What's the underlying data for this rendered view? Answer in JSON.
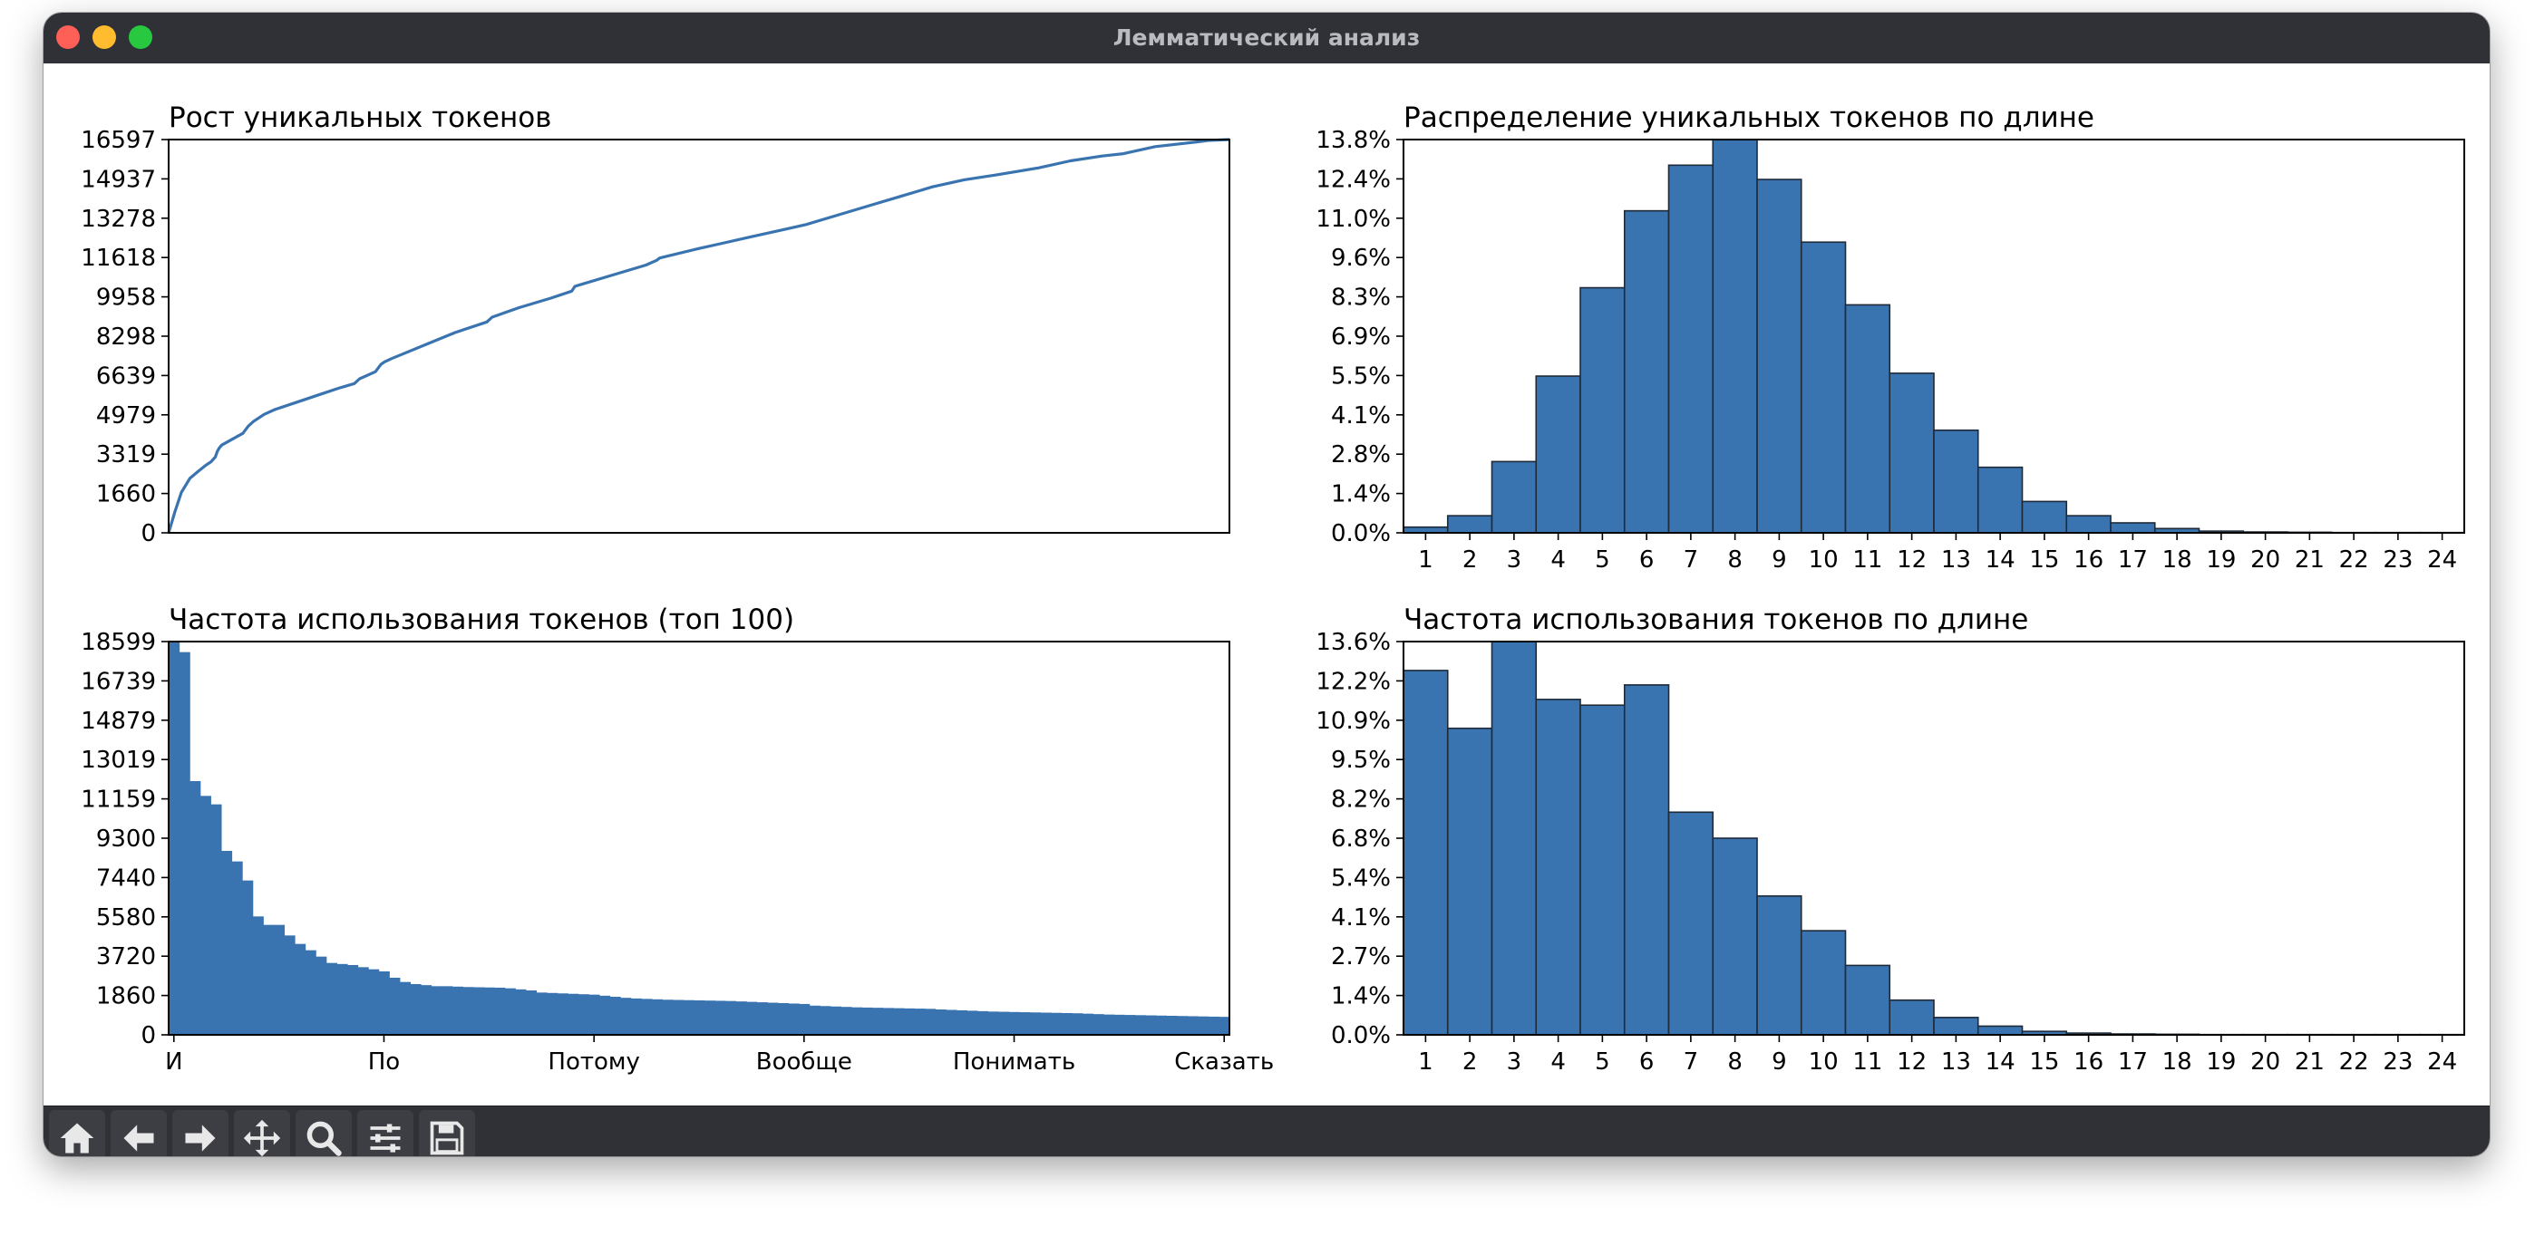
{
  "window": {
    "title": "Лемматический анализ"
  },
  "colors": {
    "bar": "#3a74b0",
    "edge": "#1f2a38",
    "line": "#3a74b0",
    "titlebar": "#2f3136"
  },
  "toolbar": {
    "buttons": [
      {
        "name": "home",
        "icon": "home-icon"
      },
      {
        "name": "back",
        "icon": "arrow-left-icon"
      },
      {
        "name": "forward",
        "icon": "arrow-right-icon"
      },
      {
        "name": "pan",
        "icon": "move-icon"
      },
      {
        "name": "zoom",
        "icon": "magnifier-icon"
      },
      {
        "name": "configure-subplots",
        "icon": "sliders-icon"
      },
      {
        "name": "save",
        "icon": "floppy-icon"
      }
    ]
  },
  "chart_data": [
    {
      "id": "growth",
      "type": "line",
      "title": "Рост уникальных токенов",
      "xlabel": "",
      "ylabel": "",
      "yticks": [
        "0",
        "1660",
        "3319",
        "4979",
        "6639",
        "8298",
        "9958",
        "11618",
        "13278",
        "14937",
        "16597"
      ],
      "ylim": [
        0,
        16597
      ],
      "xlim": [
        0,
        1
      ],
      "grid": false,
      "x": [
        0,
        0.006,
        0.012,
        0.02,
        0.028,
        0.035,
        0.04,
        0.044,
        0.046,
        0.048,
        0.05,
        0.06,
        0.07,
        0.075,
        0.08,
        0.09,
        0.1,
        0.12,
        0.14,
        0.16,
        0.175,
        0.18,
        0.195,
        0.2,
        0.203,
        0.21,
        0.24,
        0.27,
        0.3,
        0.305,
        0.33,
        0.36,
        0.38,
        0.383,
        0.42,
        0.45,
        0.46,
        0.463,
        0.5,
        0.52,
        0.55,
        0.58,
        0.6,
        0.63,
        0.66,
        0.69,
        0.72,
        0.75,
        0.78,
        0.8,
        0.82,
        0.85,
        0.88,
        0.9,
        0.93,
        0.95,
        0.97,
        0.98,
        1.0
      ],
      "y": [
        0,
        900,
        1700,
        2300,
        2600,
        2850,
        3000,
        3200,
        3450,
        3600,
        3700,
        3950,
        4200,
        4500,
        4700,
        5000,
        5200,
        5500,
        5800,
        6100,
        6300,
        6500,
        6800,
        7100,
        7200,
        7350,
        7900,
        8450,
        8900,
        9100,
        9500,
        9900,
        10200,
        10400,
        10900,
        11300,
        11500,
        11600,
        12000,
        12200,
        12500,
        12800,
        13000,
        13400,
        13800,
        14200,
        14600,
        14900,
        15100,
        15250,
        15400,
        15700,
        15900,
        16000,
        16300,
        16400,
        16500,
        16560,
        16597
      ]
    },
    {
      "id": "unique-by-length",
      "type": "bar",
      "title": "Распределение уникальных токенов по длине",
      "xlabel": "",
      "ylabel": "",
      "categories": [
        "1",
        "2",
        "3",
        "4",
        "5",
        "6",
        "7",
        "8",
        "9",
        "10",
        "11",
        "12",
        "13",
        "14",
        "15",
        "16",
        "17",
        "18",
        "19",
        "20",
        "21",
        "22",
        "23",
        "24"
      ],
      "x": [
        1,
        2,
        3,
        4,
        5,
        6,
        7,
        8,
        9,
        10,
        11,
        12,
        13,
        14,
        15,
        16,
        17,
        18,
        19,
        20,
        21,
        22,
        23,
        24
      ],
      "values": [
        0.2,
        0.6,
        2.5,
        5.5,
        8.6,
        11.3,
        12.9,
        13.8,
        12.4,
        10.2,
        8.0,
        5.6,
        3.6,
        2.3,
        1.1,
        0.6,
        0.35,
        0.15,
        0.06,
        0.03,
        0.02,
        0.01,
        0.01,
        0.01
      ],
      "yticks": [
        "0.0%",
        "1.4%",
        "2.8%",
        "4.1%",
        "5.5%",
        "6.9%",
        "8.3%",
        "9.6%",
        "11.0%",
        "12.4%",
        "13.8%"
      ],
      "ylim": [
        0,
        13.8
      ],
      "xlim": [
        0.5,
        24.5
      ],
      "grid": false
    },
    {
      "id": "top100-frequency",
      "type": "bar",
      "title": "Частота использования токенов (топ 100)",
      "xlabel": "",
      "ylabel": "",
      "xticks": [
        "И",
        "По",
        "Потому",
        "Вообще",
        "Понимать",
        "Сказать"
      ],
      "xtick_positions": [
        0,
        20,
        40,
        60,
        80,
        100
      ],
      "xlim": [
        -0.5,
        100.5
      ],
      "values": [
        18599,
        18100,
        12000,
        11300,
        10900,
        8700,
        8200,
        7300,
        5600,
        5200,
        5200,
        4700,
        4300,
        4000,
        3700,
        3400,
        3350,
        3300,
        3200,
        3100,
        3000,
        2700,
        2500,
        2400,
        2350,
        2300,
        2300,
        2280,
        2260,
        2250,
        2240,
        2230,
        2200,
        2150,
        2100,
        2000,
        1980,
        1960,
        1940,
        1920,
        1900,
        1850,
        1800,
        1750,
        1720,
        1700,
        1680,
        1660,
        1650,
        1640,
        1630,
        1620,
        1610,
        1600,
        1580,
        1560,
        1540,
        1520,
        1500,
        1480,
        1460,
        1380,
        1360,
        1340,
        1320,
        1300,
        1290,
        1280,
        1270,
        1260,
        1250,
        1240,
        1230,
        1200,
        1180,
        1160,
        1140,
        1120,
        1100,
        1090,
        1080,
        1070,
        1060,
        1050,
        1040,
        1030,
        1020,
        1000,
        980,
        960,
        950,
        940,
        930,
        920,
        910,
        900,
        890,
        880,
        870,
        860,
        850
      ],
      "yticks": [
        "0",
        "1860",
        "3720",
        "5580",
        "7440",
        "9300",
        "11159",
        "13019",
        "14879",
        "16739",
        "18599"
      ],
      "ylim": [
        0,
        18599
      ],
      "grid": false
    },
    {
      "id": "usage-by-length",
      "type": "bar",
      "title": "Частота использования токенов по длине",
      "xlabel": "",
      "ylabel": "",
      "categories": [
        "1",
        "2",
        "3",
        "4",
        "5",
        "6",
        "7",
        "8",
        "9",
        "10",
        "11",
        "12",
        "13",
        "14",
        "15",
        "16",
        "17",
        "18",
        "19",
        "20",
        "21",
        "22",
        "23",
        "24"
      ],
      "x": [
        1,
        2,
        3,
        4,
        5,
        6,
        7,
        8,
        9,
        10,
        11,
        12,
        13,
        14,
        15,
        16,
        17,
        18,
        19,
        20,
        21,
        22,
        23,
        24
      ],
      "values": [
        12.6,
        10.6,
        13.6,
        11.6,
        11.4,
        12.1,
        7.7,
        6.8,
        4.8,
        3.6,
        2.4,
        1.2,
        0.6,
        0.3,
        0.12,
        0.06,
        0.03,
        0.02,
        0.01,
        0.01,
        0.01,
        0.01,
        0.01,
        0.01
      ],
      "yticks": [
        "0.0%",
        "1.4%",
        "2.7%",
        "4.1%",
        "5.4%",
        "6.8%",
        "8.2%",
        "9.5%",
        "10.9%",
        "12.2%",
        "13.6%"
      ],
      "ylim": [
        0,
        13.6
      ],
      "xlim": [
        0.5,
        24.5
      ],
      "grid": false
    }
  ]
}
